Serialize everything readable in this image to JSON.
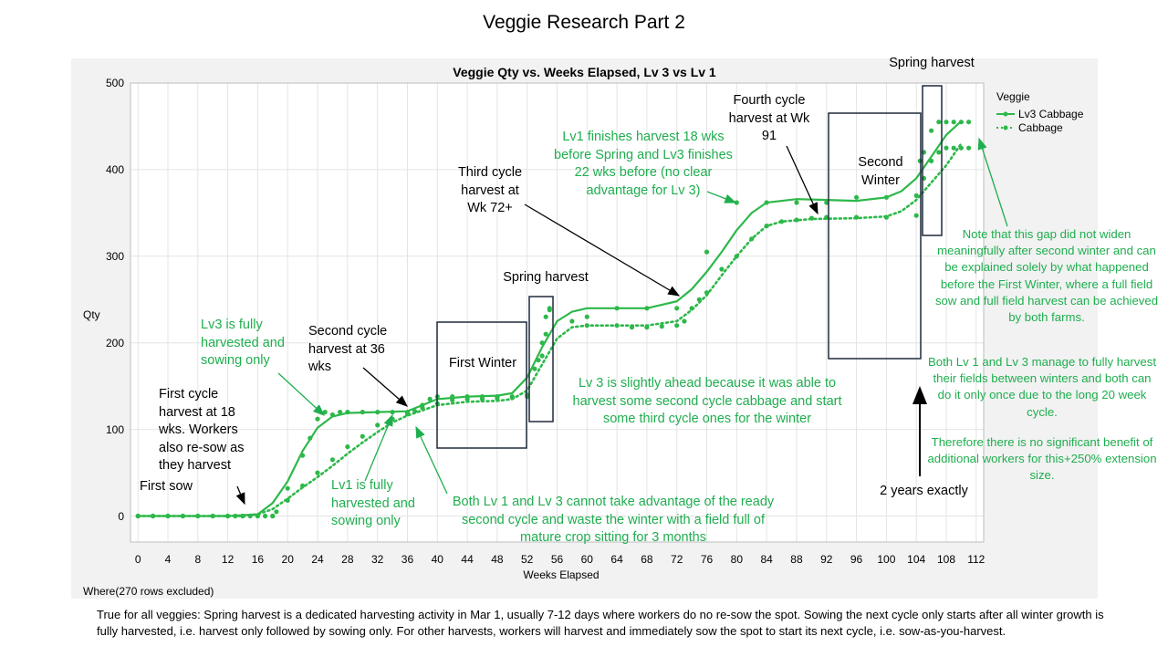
{
  "slide_title": "Veggie Research Part 2",
  "chart_data": {
    "type": "scatter",
    "title": "Veggie Qty vs. Weeks Elapsed, Lv 3 vs Lv 1",
    "xlabel": "Weeks Elapsed",
    "ylabel": "Qty",
    "xlim": [
      -1,
      113
    ],
    "ylim": [
      -30,
      500
    ],
    "x_ticks": [
      0,
      4,
      8,
      12,
      16,
      20,
      24,
      28,
      32,
      36,
      40,
      44,
      48,
      52,
      56,
      60,
      64,
      68,
      72,
      76,
      80,
      84,
      88,
      92,
      96,
      100,
      104,
      108,
      112
    ],
    "y_ticks": [
      0,
      100,
      200,
      300,
      400,
      500
    ],
    "grid": true,
    "legend_title": "Veggie",
    "legend_position": "right",
    "series": [
      {
        "name": "Lv3 Cabbage",
        "color": "#2db84a",
        "line_style": "solid",
        "points": [
          [
            0,
            0
          ],
          [
            2,
            0
          ],
          [
            4,
            0
          ],
          [
            6,
            0
          ],
          [
            8,
            0
          ],
          [
            10,
            0
          ],
          [
            12,
            0
          ],
          [
            13,
            0
          ],
          [
            14,
            0
          ],
          [
            15,
            0
          ],
          [
            16,
            0
          ],
          [
            17,
            0
          ],
          [
            18,
            0
          ],
          [
            20,
            32
          ],
          [
            22,
            70
          ],
          [
            23,
            90
          ],
          [
            24,
            112
          ],
          [
            25,
            120
          ],
          [
            26,
            117
          ],
          [
            27,
            120
          ],
          [
            28,
            120
          ],
          [
            30,
            120
          ],
          [
            32,
            120
          ],
          [
            34,
            120
          ],
          [
            36,
            120
          ],
          [
            37,
            121
          ],
          [
            38,
            128
          ],
          [
            39,
            135
          ],
          [
            40,
            138
          ],
          [
            42,
            138
          ],
          [
            44,
            138
          ],
          [
            46,
            138
          ],
          [
            48,
            138
          ],
          [
            50,
            138
          ],
          [
            52,
            138
          ],
          [
            53,
            170
          ],
          [
            53.5,
            180
          ],
          [
            54,
            200
          ],
          [
            54.5,
            210
          ],
          [
            55,
            240
          ],
          [
            58,
            225
          ],
          [
            60,
            230
          ],
          [
            64,
            240
          ],
          [
            68,
            240
          ],
          [
            72,
            240
          ],
          [
            76,
            305
          ],
          [
            80,
            362
          ],
          [
            84,
            362
          ],
          [
            88,
            362
          ],
          [
            92,
            362
          ],
          [
            96,
            368
          ],
          [
            100,
            368
          ],
          [
            104,
            370
          ],
          [
            104.5,
            410
          ],
          [
            105,
            420
          ],
          [
            106,
            445
          ],
          [
            107,
            455
          ],
          [
            108,
            455
          ],
          [
            109,
            455
          ],
          [
            110,
            455
          ],
          [
            111,
            455
          ]
        ],
        "fit": [
          [
            0,
            0
          ],
          [
            12,
            0
          ],
          [
            16,
            2
          ],
          [
            18,
            15
          ],
          [
            20,
            40
          ],
          [
            22,
            75
          ],
          [
            24,
            102
          ],
          [
            26,
            115
          ],
          [
            28,
            119
          ],
          [
            32,
            120
          ],
          [
            36,
            121
          ],
          [
            38,
            128
          ],
          [
            40,
            135
          ],
          [
            44,
            138
          ],
          [
            48,
            139
          ],
          [
            50,
            142
          ],
          [
            52,
            160
          ],
          [
            54,
            195
          ],
          [
            56,
            225
          ],
          [
            58,
            236
          ],
          [
            60,
            240
          ],
          [
            64,
            240
          ],
          [
            68,
            240
          ],
          [
            72,
            248
          ],
          [
            74,
            262
          ],
          [
            76,
            282
          ],
          [
            78,
            305
          ],
          [
            80,
            330
          ],
          [
            82,
            350
          ],
          [
            84,
            362
          ],
          [
            88,
            366
          ],
          [
            92,
            365
          ],
          [
            96,
            364
          ],
          [
            100,
            368
          ],
          [
            102,
            375
          ],
          [
            104,
            390
          ],
          [
            106,
            415
          ],
          [
            108,
            440
          ],
          [
            110,
            456
          ]
        ]
      },
      {
        "name": "Cabbage",
        "color": "#2db84a",
        "line_style": "dotted",
        "points": [
          [
            0,
            0
          ],
          [
            2,
            0
          ],
          [
            4,
            0
          ],
          [
            6,
            0
          ],
          [
            8,
            0
          ],
          [
            10,
            0
          ],
          [
            12,
            0
          ],
          [
            14,
            0
          ],
          [
            16,
            0
          ],
          [
            18,
            0
          ],
          [
            18.5,
            5
          ],
          [
            20,
            18
          ],
          [
            22,
            35
          ],
          [
            24,
            50
          ],
          [
            26,
            65
          ],
          [
            28,
            80
          ],
          [
            30,
            92
          ],
          [
            32,
            105
          ],
          [
            34,
            112
          ],
          [
            36,
            118
          ],
          [
            38,
            125
          ],
          [
            40,
            130
          ],
          [
            42,
            134
          ],
          [
            44,
            135
          ],
          [
            46,
            135
          ],
          [
            48,
            136
          ],
          [
            50,
            137
          ],
          [
            52,
            140
          ],
          [
            54,
            185
          ],
          [
            54.5,
            230
          ],
          [
            55,
            238
          ],
          [
            60,
            220
          ],
          [
            64,
            220
          ],
          [
            66,
            218
          ],
          [
            68,
            218
          ],
          [
            70,
            219
          ],
          [
            72,
            220
          ],
          [
            73,
            225
          ],
          [
            74,
            240
          ],
          [
            75,
            250
          ],
          [
            76,
            258
          ],
          [
            78,
            285
          ],
          [
            80,
            300
          ],
          [
            82,
            320
          ],
          [
            84,
            335
          ],
          [
            86,
            340
          ],
          [
            88,
            342
          ],
          [
            90,
            344
          ],
          [
            92,
            345
          ],
          [
            96,
            345
          ],
          [
            100,
            345
          ],
          [
            104,
            347
          ],
          [
            105,
            390
          ],
          [
            106,
            410
          ],
          [
            107,
            420
          ],
          [
            108,
            425
          ],
          [
            109,
            425
          ],
          [
            110,
            425
          ],
          [
            111,
            425
          ]
        ],
        "fit": [
          [
            0,
            0
          ],
          [
            14,
            0
          ],
          [
            16,
            2
          ],
          [
            18,
            8
          ],
          [
            20,
            20
          ],
          [
            22,
            33
          ],
          [
            24,
            45
          ],
          [
            26,
            58
          ],
          [
            28,
            72
          ],
          [
            30,
            85
          ],
          [
            32,
            97
          ],
          [
            34,
            108
          ],
          [
            36,
            116
          ],
          [
            38,
            122
          ],
          [
            40,
            128
          ],
          [
            44,
            132
          ],
          [
            48,
            133
          ],
          [
            50,
            135
          ],
          [
            52,
            145
          ],
          [
            54,
            175
          ],
          [
            56,
            205
          ],
          [
            58,
            218
          ],
          [
            60,
            220
          ],
          [
            64,
            220
          ],
          [
            68,
            220
          ],
          [
            72,
            225
          ],
          [
            74,
            238
          ],
          [
            76,
            255
          ],
          [
            78,
            278
          ],
          [
            80,
            300
          ],
          [
            82,
            320
          ],
          [
            84,
            335
          ],
          [
            86,
            340
          ],
          [
            90,
            343
          ],
          [
            96,
            344
          ],
          [
            100,
            346
          ],
          [
            102,
            352
          ],
          [
            104,
            365
          ],
          [
            106,
            385
          ],
          [
            108,
            405
          ],
          [
            110,
            430
          ]
        ]
      }
    ]
  },
  "annotations": {
    "first_sow": "First sow",
    "first_cycle": "First cycle harvest at 18 wks. Workers also re-sow as they harvest",
    "second_cycle": "Second cycle harvest at 36 wks",
    "lv3_fully": "Lv3 is fully harvested and sowing only",
    "lv1_fully": "Lv1 is fully harvested and sowing only",
    "both_cannot": "Both Lv 1 and Lv 3  cannot take advantage of the ready second cycle and waste the winter with a field full of mature crop sitting for 3 months",
    "first_winter": "First Winter",
    "spring_harvest_1": "Spring harvest",
    "third_cycle": "Third cycle harvest at Wk 72+",
    "lv3_slightly": "Lv 3 is slightly ahead because it was able to harvest some second cycle cabbage and start some third cycle ones for the winter",
    "lv1_finishes": "Lv1 finishes harvest 18 wks before Spring and Lv3 finishes 22 wks before (no clear advantage for Lv 3)",
    "fourth_cycle": "Fourth cycle harvest at Wk 91",
    "second_winter": "Second Winter",
    "spring_harvest_2": "Spring harvest",
    "gap_note": "Note that this gap did not widen meaningfully after second winter and can be explained solely by what happened before the First Winter, where a full field sow and full field harvest can be achieved by both farms.",
    "both_manage": "Both Lv 1 and Lv 3 manage to fully harvest their fields between winters and both can do it only once due to the long 20 week cycle.",
    "therefore": "Therefore there is no significant benefit of additional workers for this+250% extension size.",
    "two_years": "2 years exactly"
  },
  "excluded_note": "Where(270 rows excluded)",
  "footnote": "True for all veggies: Spring harvest is a dedicated harvesting activity in Mar 1, usually 7-12 days where workers do no re-sow the spot. Sowing the next cycle only starts after all winter growth is fully harvested, i.e. harvest only followed by sowing only. For other harvests, workers will harvest and immediately sow the spot to start its next cycle, i.e. sow-as-you-harvest."
}
